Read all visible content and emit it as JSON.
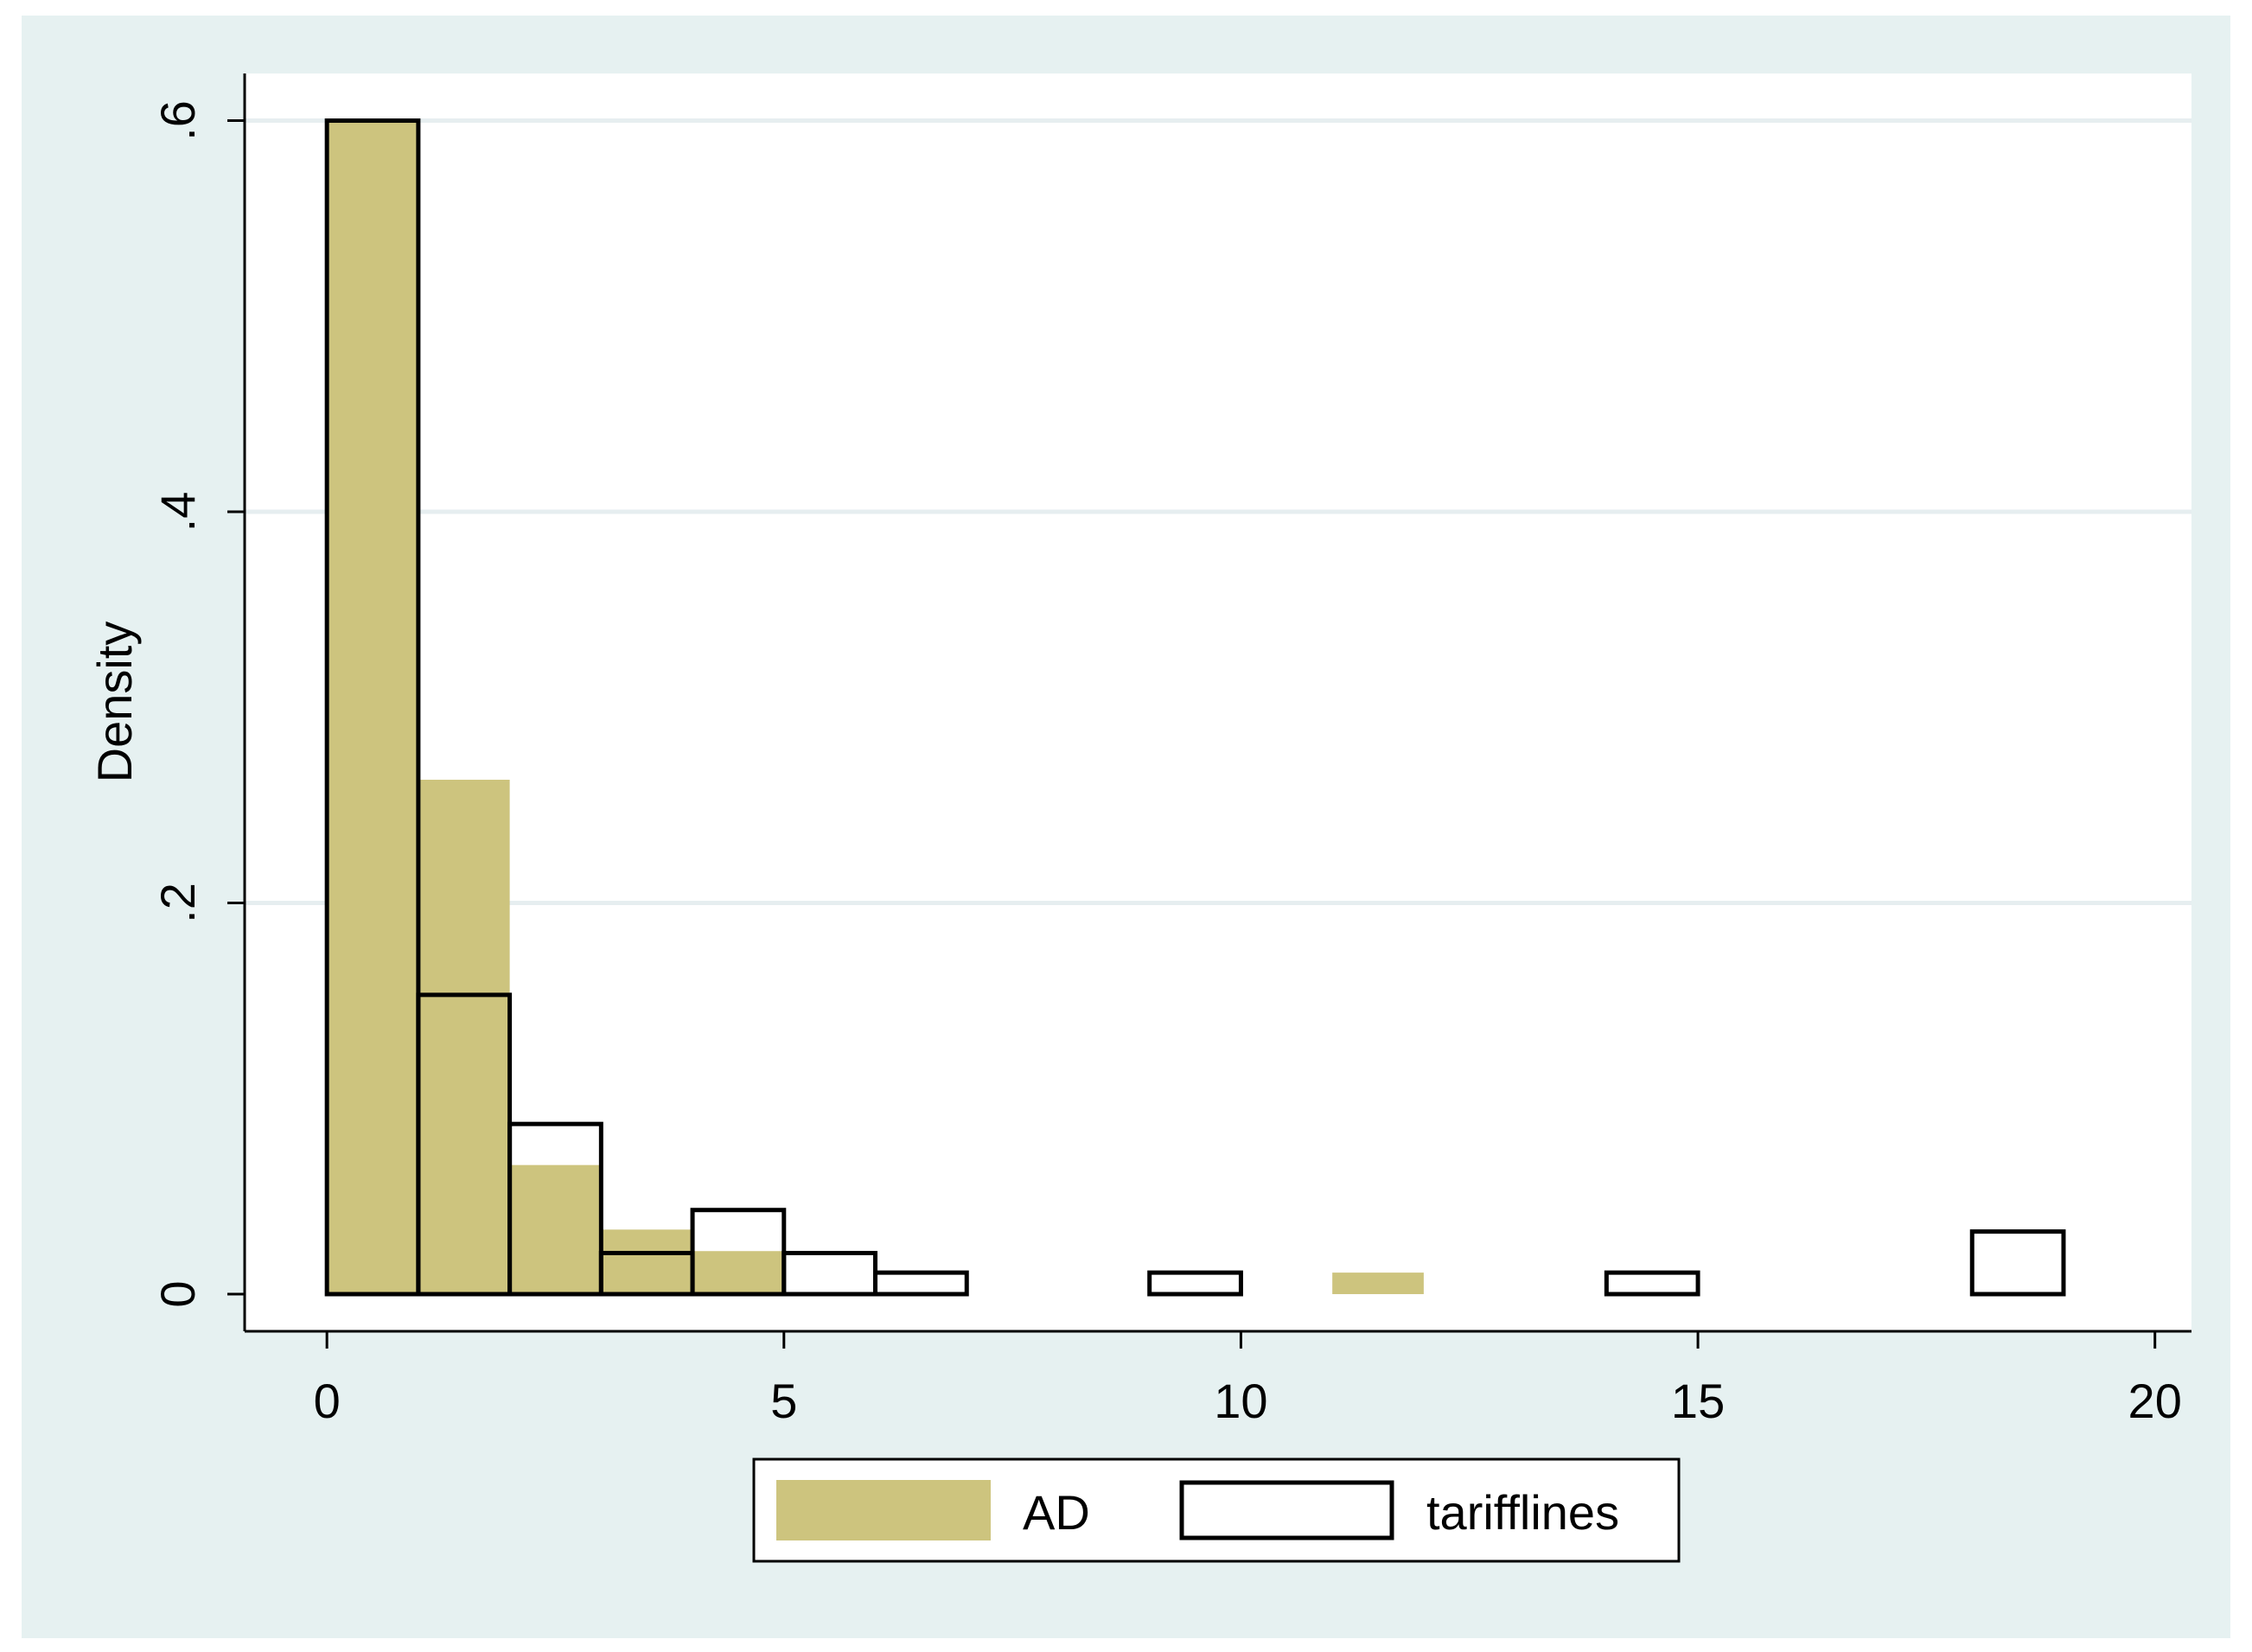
{
  "chart_data": {
    "type": "bar",
    "ylabel": "Density",
    "xlabel": "",
    "xlim": [
      -0.9,
      20.4
    ],
    "ylim": [
      -0.019,
      0.6241
    ],
    "xticks": [
      0,
      5,
      10,
      15,
      20
    ],
    "xtick_labels": [
      "0",
      "5",
      "10",
      "15",
      "20"
    ],
    "yticks": [
      0,
      0.2,
      0.4,
      0.6
    ],
    "ytick_labels": [
      "0",
      ".2",
      ".4",
      ".6"
    ],
    "grid": true,
    "legend_position": "bottom",
    "series": [
      {
        "name": "AD",
        "style": "filled",
        "bins": [
          {
            "x0": 0,
            "x1": 1,
            "value": 0.6
          },
          {
            "x0": 1,
            "x1": 2,
            "value": 0.263
          },
          {
            "x0": 2,
            "x1": 3,
            "value": 0.066
          },
          {
            "x0": 3,
            "x1": 4,
            "value": 0.033
          },
          {
            "x0": 4,
            "x1": 5,
            "value": 0.022
          },
          {
            "x0": 11,
            "x1": 12,
            "value": 0.011
          }
        ]
      },
      {
        "name": "tarifflines",
        "style": "outline",
        "bins": [
          {
            "x0": 0,
            "x1": 1,
            "value": 0.6
          },
          {
            "x0": 1,
            "x1": 2,
            "value": 0.153
          },
          {
            "x0": 2,
            "x1": 3,
            "value": 0.087
          },
          {
            "x0": 3,
            "x1": 4,
            "value": 0.021
          },
          {
            "x0": 4,
            "x1": 5,
            "value": 0.043
          },
          {
            "x0": 5,
            "x1": 6,
            "value": 0.021
          },
          {
            "x0": 6,
            "x1": 7,
            "value": 0.011
          },
          {
            "x0": 9,
            "x1": 10,
            "value": 0.011
          },
          {
            "x0": 14,
            "x1": 15,
            "value": 0.011
          },
          {
            "x0": 18,
            "x1": 19,
            "value": 0.032
          }
        ]
      }
    ]
  },
  "colors": {
    "outer_background": "#e6f1f1",
    "plot_background": "#ffffff",
    "grid": "#e6eef0",
    "ad_fill": "#cdc47e",
    "outline": "#000000"
  }
}
